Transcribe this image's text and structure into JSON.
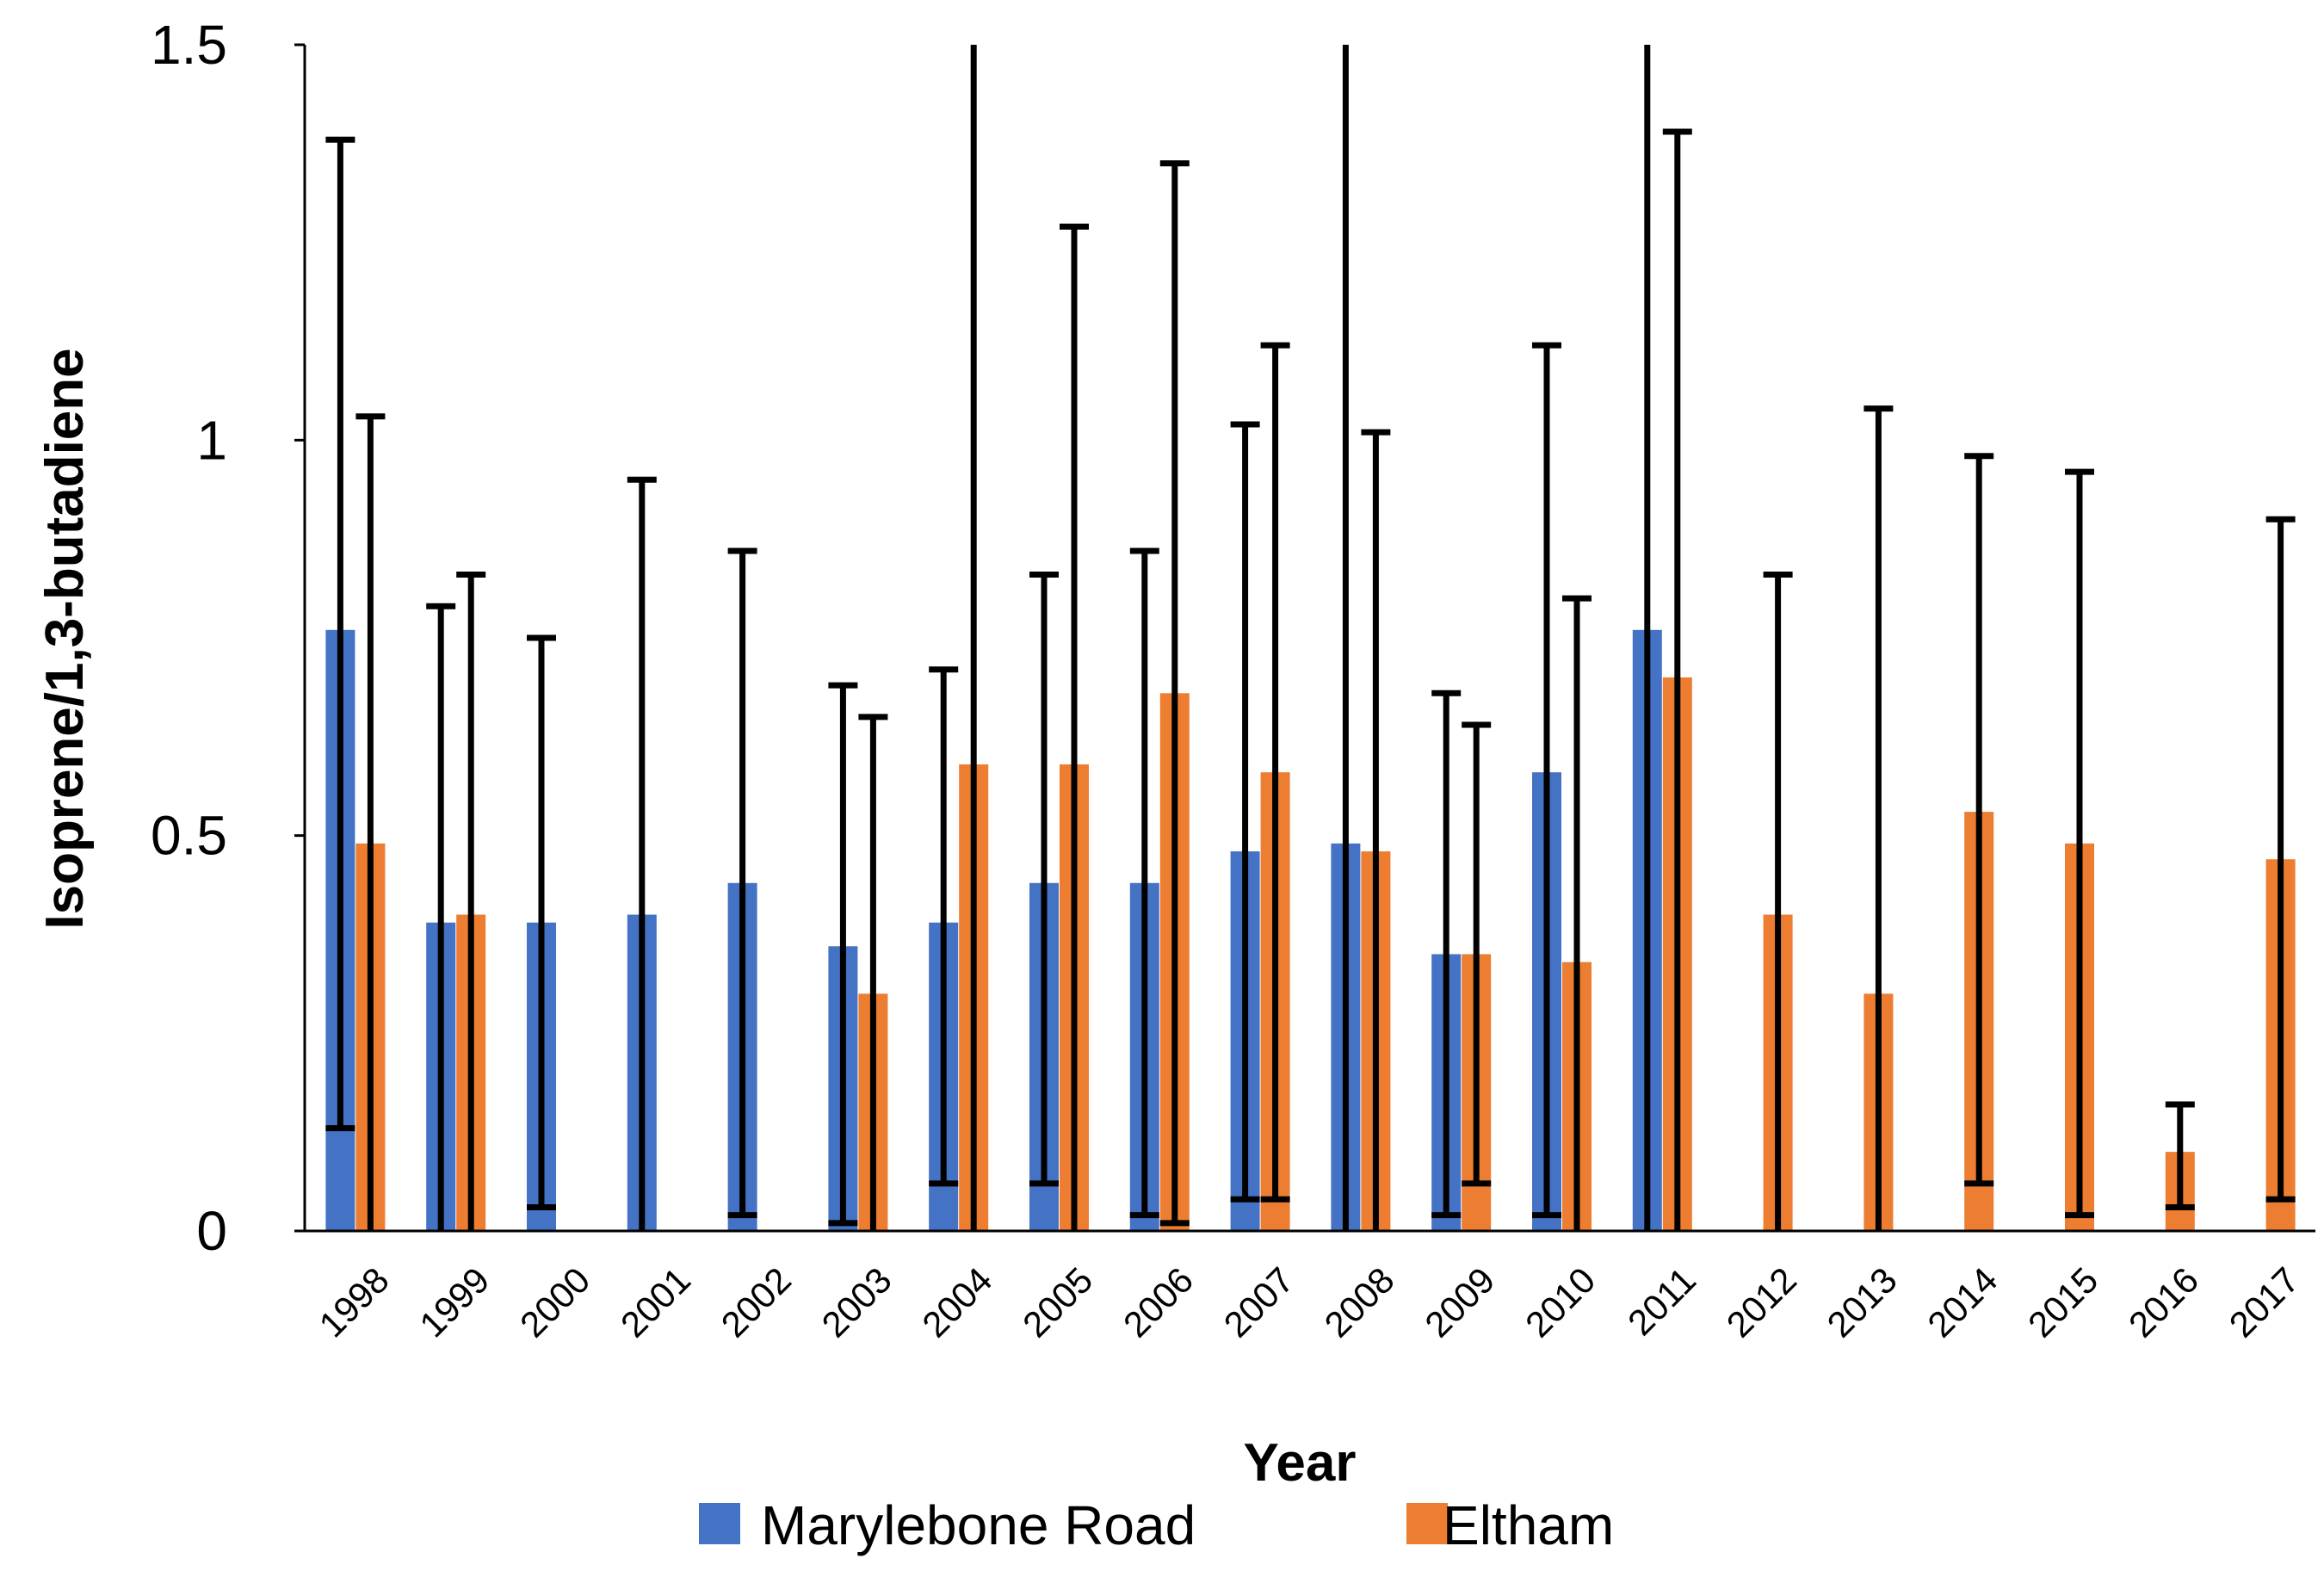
{
  "chart_data": {
    "type": "bar",
    "title": "",
    "xlabel": "Year",
    "ylabel": "Isoprene/1,3-butadiene",
    "ylim": [
      0,
      1.5
    ],
    "yticks": [
      0,
      0.5,
      1,
      1.5
    ],
    "ytick_labels": [
      "0",
      "0.5",
      "1",
      "1.5"
    ],
    "grid": false,
    "legend_position": "bottom",
    "categories": [
      "1998",
      "1999",
      "2000",
      "2001",
      "2002",
      "2003",
      "2004",
      "2005",
      "2006",
      "2007",
      "2008",
      "2009",
      "2010",
      "2011",
      "2012",
      "2013",
      "2014",
      "2015",
      "2016",
      "2017"
    ],
    "series": [
      {
        "name": "Marylebone Road",
        "color": "#4472c4",
        "values": [
          0.76,
          0.39,
          0.39,
          0.4,
          0.44,
          0.36,
          0.39,
          0.44,
          0.44,
          0.48,
          0.49,
          0.35,
          0.58,
          0.76,
          null,
          null,
          null,
          null,
          null,
          null
        ],
        "error_low": [
          0.13,
          0,
          0.03,
          0,
          0.02,
          0.01,
          0.06,
          0.06,
          0.02,
          0.04,
          0,
          0.02,
          0.02,
          0,
          null,
          null,
          null,
          null,
          null,
          null
        ],
        "error_high": [
          1.38,
          0.79,
          0.75,
          0.95,
          0.86,
          0.69,
          0.71,
          0.83,
          0.86,
          1.02,
          1.5,
          0.68,
          1.12,
          1.5,
          null,
          null,
          null,
          null,
          null,
          null
        ]
      },
      {
        "name": "Eltham",
        "color": "#ed7d31",
        "values": [
          0.49,
          0.4,
          null,
          null,
          null,
          0.3,
          0.59,
          0.59,
          0.68,
          0.58,
          0.48,
          0.35,
          0.34,
          0.7,
          0.4,
          0.3,
          0.53,
          0.49,
          0.1,
          0.47
        ],
        "error_low": [
          0,
          0,
          null,
          null,
          null,
          0,
          0,
          0,
          0.01,
          0.04,
          0,
          0.06,
          0,
          0,
          0,
          0,
          0.06,
          0.02,
          0.03,
          0.04
        ],
        "error_high": [
          1.03,
          0.83,
          null,
          null,
          null,
          0.65,
          1.5,
          1.27,
          1.35,
          1.12,
          1.01,
          0.64,
          0.8,
          1.39,
          0.83,
          1.04,
          0.98,
          0.96,
          0.16,
          0.9
        ]
      }
    ]
  }
}
